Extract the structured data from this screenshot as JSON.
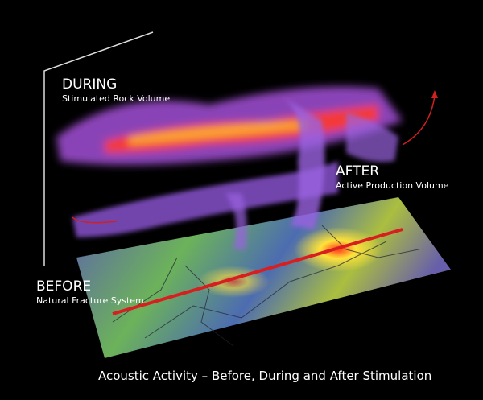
{
  "labels": {
    "during": {
      "title": "DURING",
      "subtitle": "Stimulated Rock Volume"
    },
    "after": {
      "title": "AFTER",
      "subtitle": "Active Production Volume"
    },
    "before": {
      "title": "BEFORE",
      "subtitle": "Natural Fracture System"
    }
  },
  "caption": "Acoustic Activity – Before, During and After Stimulation"
}
